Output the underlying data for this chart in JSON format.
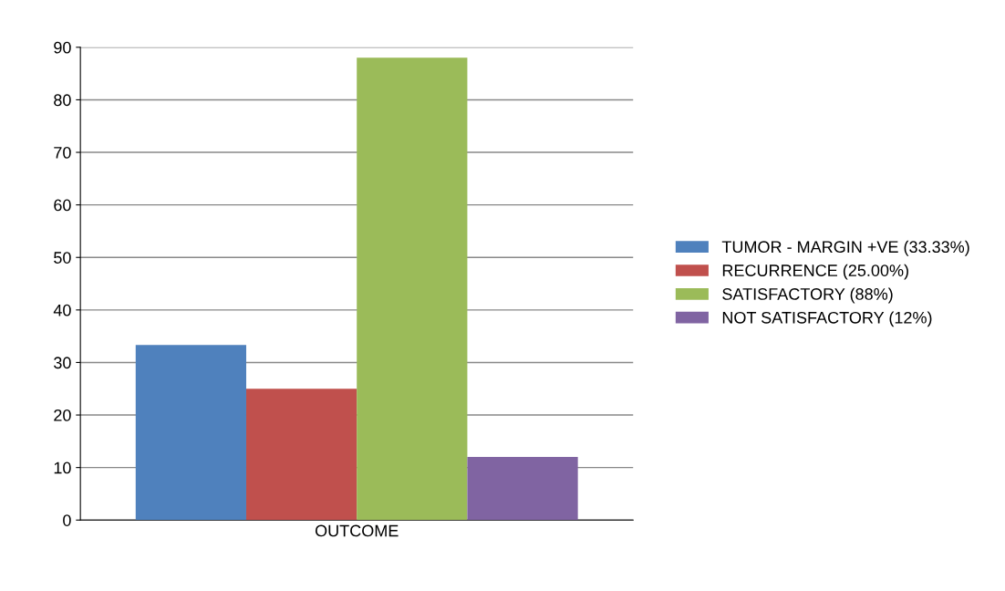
{
  "chart_data": {
    "type": "bar",
    "categories": [
      "OUTCOME"
    ],
    "series": [
      {
        "name": "TUMOR - MARGIN +VE (33.33%)",
        "color": "#4f81bd",
        "values": [
          33.33
        ]
      },
      {
        "name": "RECURRENCE (25.00%)",
        "color": "#c0504d",
        "values": [
          25
        ]
      },
      {
        "name": "SATISFACTORY (88%)",
        "color": "#9bbb59",
        "values": [
          88
        ]
      },
      {
        "name": "NOT SATISFACTORY (12%)",
        "color": "#8064a2",
        "values": [
          12
        ]
      }
    ],
    "ylim": [
      0,
      90
    ],
    "yticks": [
      0,
      10,
      20,
      30,
      40,
      50,
      60,
      70,
      80,
      90
    ],
    "grid": "y",
    "legend": "right"
  }
}
